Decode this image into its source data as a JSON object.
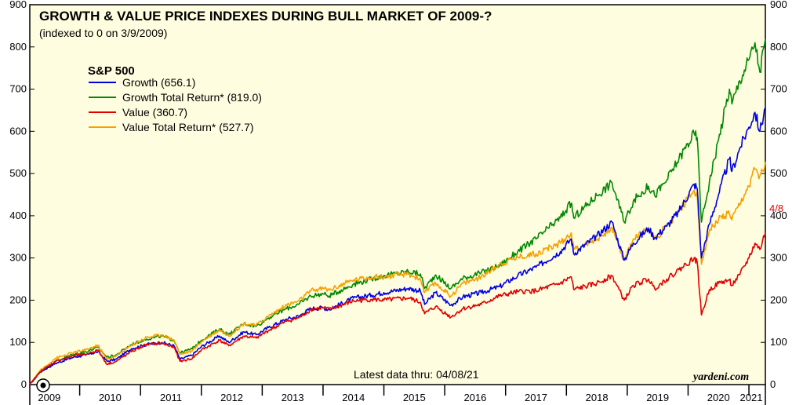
{
  "chart_data": {
    "type": "line",
    "title": "GROWTH & VALUE PRICE INDEXES DURING BULL MARKET OF 2009-?",
    "subtitle": "(indexed to 0 on 3/9/2009)",
    "legend_title": "S&P 500",
    "legend_position": "top-left",
    "note": "Latest data thru: 04/08/21",
    "source": "yardeni.com",
    "end_label": "4/8",
    "background_color": "#fffde0",
    "ylim": [
      0,
      900
    ],
    "yticks": [
      0,
      100,
      200,
      300,
      400,
      500,
      600,
      700,
      800,
      900
    ],
    "ytick_labels": [
      "0",
      "100",
      "200",
      "300",
      "400",
      "500",
      "600",
      "700",
      "800",
      "900"
    ],
    "xlim": [
      2009.18,
      2021.27
    ],
    "xticks": [
      2009,
      2010,
      2011,
      2012,
      2013,
      2014,
      2015,
      2016,
      2017,
      2018,
      2019,
      2020,
      2021
    ],
    "xtick_labels": [
      "2009",
      "2010",
      "2011",
      "2012",
      "2013",
      "2014",
      "2015",
      "2016",
      "2017",
      "2018",
      "2019",
      "2020",
      "2021"
    ],
    "grid": false,
    "series": [
      {
        "name": "Growth (656.1)",
        "color": "#0000e0",
        "points": [
          [
            2009.18,
            0
          ],
          [
            2009.35,
            30
          ],
          [
            2009.6,
            50
          ],
          [
            2009.9,
            65
          ],
          [
            2010.1,
            70
          ],
          [
            2010.3,
            78
          ],
          [
            2010.45,
            55
          ],
          [
            2010.6,
            60
          ],
          [
            2010.85,
            85
          ],
          [
            2011.1,
            95
          ],
          [
            2011.35,
            100
          ],
          [
            2011.55,
            92
          ],
          [
            2011.65,
            60
          ],
          [
            2011.85,
            70
          ],
          [
            2012.0,
            90
          ],
          [
            2012.3,
            115
          ],
          [
            2012.45,
            100
          ],
          [
            2012.7,
            125
          ],
          [
            2012.9,
            118
          ],
          [
            2013.1,
            135
          ],
          [
            2013.4,
            155
          ],
          [
            2013.6,
            162
          ],
          [
            2013.8,
            180
          ],
          [
            2014.0,
            182
          ],
          [
            2014.1,
            178
          ],
          [
            2014.5,
            205
          ],
          [
            2014.8,
            212
          ],
          [
            2015.0,
            218
          ],
          [
            2015.4,
            228
          ],
          [
            2015.6,
            222
          ],
          [
            2015.67,
            190
          ],
          [
            2015.85,
            218
          ],
          [
            2016.1,
            188
          ],
          [
            2016.3,
            208
          ],
          [
            2016.6,
            218
          ],
          [
            2016.9,
            232
          ],
          [
            2017.2,
            258
          ],
          [
            2017.5,
            278
          ],
          [
            2017.9,
            315
          ],
          [
            2018.08,
            345
          ],
          [
            2018.12,
            310
          ],
          [
            2018.5,
            352
          ],
          [
            2018.75,
            385
          ],
          [
            2018.95,
            295
          ],
          [
            2019.1,
            335
          ],
          [
            2019.35,
            370
          ],
          [
            2019.45,
            348
          ],
          [
            2019.65,
            375
          ],
          [
            2019.85,
            410
          ],
          [
            2020.1,
            475
          ],
          [
            2020.15,
            465
          ],
          [
            2020.22,
            300
          ],
          [
            2020.35,
            380
          ],
          [
            2020.5,
            450
          ],
          [
            2020.68,
            535
          ],
          [
            2020.72,
            505
          ],
          [
            2020.85,
            560
          ],
          [
            2021.0,
            610
          ],
          [
            2021.1,
            645
          ],
          [
            2021.18,
            600
          ],
          [
            2021.27,
            656.1
          ]
        ]
      },
      {
        "name": "Growth Total Return* (819.0)",
        "color": "#008a00",
        "points": [
          [
            2009.18,
            0
          ],
          [
            2009.35,
            32
          ],
          [
            2009.6,
            55
          ],
          [
            2009.9,
            72
          ],
          [
            2010.1,
            78
          ],
          [
            2010.3,
            88
          ],
          [
            2010.45,
            65
          ],
          [
            2010.6,
            70
          ],
          [
            2010.85,
            95
          ],
          [
            2011.1,
            108
          ],
          [
            2011.35,
            115
          ],
          [
            2011.55,
            105
          ],
          [
            2011.65,
            75
          ],
          [
            2011.85,
            85
          ],
          [
            2012.0,
            105
          ],
          [
            2012.3,
            132
          ],
          [
            2012.45,
            118
          ],
          [
            2012.7,
            145
          ],
          [
            2012.9,
            138
          ],
          [
            2013.1,
            158
          ],
          [
            2013.4,
            180
          ],
          [
            2013.6,
            190
          ],
          [
            2013.8,
            210
          ],
          [
            2014.0,
            215
          ],
          [
            2014.1,
            210
          ],
          [
            2014.5,
            238
          ],
          [
            2014.8,
            250
          ],
          [
            2015.0,
            258
          ],
          [
            2015.4,
            268
          ],
          [
            2015.6,
            262
          ],
          [
            2015.67,
            228
          ],
          [
            2015.85,
            260
          ],
          [
            2016.1,
            228
          ],
          [
            2016.3,
            252
          ],
          [
            2016.6,
            265
          ],
          [
            2016.9,
            282
          ],
          [
            2017.2,
            315
          ],
          [
            2017.5,
            345
          ],
          [
            2017.9,
            395
          ],
          [
            2018.08,
            430
          ],
          [
            2018.12,
            395
          ],
          [
            2018.5,
            448
          ],
          [
            2018.75,
            478
          ],
          [
            2018.95,
            385
          ],
          [
            2019.1,
            435
          ],
          [
            2019.35,
            470
          ],
          [
            2019.45,
            448
          ],
          [
            2019.65,
            485
          ],
          [
            2019.85,
            535
          ],
          [
            2020.1,
            595
          ],
          [
            2020.15,
            585
          ],
          [
            2020.22,
            385
          ],
          [
            2020.35,
            480
          ],
          [
            2020.5,
            580
          ],
          [
            2020.68,
            700
          ],
          [
            2020.72,
            665
          ],
          [
            2020.85,
            720
          ],
          [
            2021.0,
            770
          ],
          [
            2021.1,
            810
          ],
          [
            2021.18,
            740
          ],
          [
            2021.27,
            819.0
          ]
        ]
      },
      {
        "name": "Value (360.7)",
        "color": "#e00000",
        "points": [
          [
            2009.18,
            0
          ],
          [
            2009.35,
            30
          ],
          [
            2009.6,
            55
          ],
          [
            2009.9,
            68
          ],
          [
            2010.1,
            72
          ],
          [
            2010.3,
            82
          ],
          [
            2010.45,
            48
          ],
          [
            2010.6,
            55
          ],
          [
            2010.85,
            78
          ],
          [
            2011.1,
            95
          ],
          [
            2011.35,
            98
          ],
          [
            2011.55,
            88
          ],
          [
            2011.65,
            55
          ],
          [
            2011.85,
            62
          ],
          [
            2012.0,
            82
          ],
          [
            2012.3,
            105
          ],
          [
            2012.45,
            92
          ],
          [
            2012.7,
            115
          ],
          [
            2012.9,
            110
          ],
          [
            2013.1,
            128
          ],
          [
            2013.4,
            150
          ],
          [
            2013.6,
            158
          ],
          [
            2013.8,
            178
          ],
          [
            2014.0,
            182
          ],
          [
            2014.1,
            178
          ],
          [
            2014.5,
            198
          ],
          [
            2014.8,
            202
          ],
          [
            2015.0,
            200
          ],
          [
            2015.4,
            205
          ],
          [
            2015.6,
            195
          ],
          [
            2015.67,
            168
          ],
          [
            2015.85,
            185
          ],
          [
            2016.1,
            160
          ],
          [
            2016.3,
            180
          ],
          [
            2016.6,
            190
          ],
          [
            2016.9,
            210
          ],
          [
            2017.2,
            220
          ],
          [
            2017.5,
            222
          ],
          [
            2017.9,
            240
          ],
          [
            2018.08,
            255
          ],
          [
            2018.12,
            225
          ],
          [
            2018.5,
            240
          ],
          [
            2018.75,
            258
          ],
          [
            2018.95,
            200
          ],
          [
            2019.1,
            235
          ],
          [
            2019.35,
            250
          ],
          [
            2019.45,
            228
          ],
          [
            2019.65,
            250
          ],
          [
            2019.85,
            272
          ],
          [
            2020.1,
            300
          ],
          [
            2020.15,
            290
          ],
          [
            2020.22,
            165
          ],
          [
            2020.35,
            225
          ],
          [
            2020.5,
            240
          ],
          [
            2020.68,
            248
          ],
          [
            2020.72,
            235
          ],
          [
            2020.85,
            260
          ],
          [
            2021.0,
            300
          ],
          [
            2021.1,
            335
          ],
          [
            2021.18,
            320
          ],
          [
            2021.27,
            360.7
          ]
        ]
      },
      {
        "name": "Value Total Return* (527.7)",
        "color": "#f5a000",
        "points": [
          [
            2009.18,
            0
          ],
          [
            2009.35,
            33
          ],
          [
            2009.6,
            62
          ],
          [
            2009.9,
            76
          ],
          [
            2010.1,
            82
          ],
          [
            2010.3,
            93
          ],
          [
            2010.45,
            60
          ],
          [
            2010.6,
            68
          ],
          [
            2010.85,
            93
          ],
          [
            2011.1,
            112
          ],
          [
            2011.35,
            118
          ],
          [
            2011.55,
            106
          ],
          [
            2011.65,
            72
          ],
          [
            2011.85,
            80
          ],
          [
            2012.0,
            102
          ],
          [
            2012.3,
            130
          ],
          [
            2012.45,
            115
          ],
          [
            2012.7,
            145
          ],
          [
            2012.9,
            140
          ],
          [
            2013.1,
            162
          ],
          [
            2013.4,
            188
          ],
          [
            2013.6,
            198
          ],
          [
            2013.8,
            222
          ],
          [
            2014.0,
            228
          ],
          [
            2014.1,
            224
          ],
          [
            2014.5,
            248
          ],
          [
            2014.8,
            255
          ],
          [
            2015.0,
            255
          ],
          [
            2015.4,
            262
          ],
          [
            2015.6,
            250
          ],
          [
            2015.67,
            218
          ],
          [
            2015.85,
            240
          ],
          [
            2016.1,
            210
          ],
          [
            2016.3,
            240
          ],
          [
            2016.6,
            255
          ],
          [
            2016.9,
            285
          ],
          [
            2017.2,
            302
          ],
          [
            2017.5,
            310
          ],
          [
            2017.9,
            335
          ],
          [
            2018.08,
            360
          ],
          [
            2018.12,
            320
          ],
          [
            2018.5,
            345
          ],
          [
            2018.75,
            372
          ],
          [
            2018.95,
            295
          ],
          [
            2019.1,
            345
          ],
          [
            2019.35,
            372
          ],
          [
            2019.45,
            345
          ],
          [
            2019.65,
            375
          ],
          [
            2019.85,
            412
          ],
          [
            2020.1,
            460
          ],
          [
            2020.15,
            448
          ],
          [
            2020.22,
            285
          ],
          [
            2020.35,
            365
          ],
          [
            2020.5,
            390
          ],
          [
            2020.68,
            405
          ],
          [
            2020.72,
            390
          ],
          [
            2020.85,
            425
          ],
          [
            2021.0,
            470
          ],
          [
            2021.1,
            510
          ],
          [
            2021.18,
            495
          ],
          [
            2021.27,
            527.7
          ]
        ]
      }
    ]
  }
}
